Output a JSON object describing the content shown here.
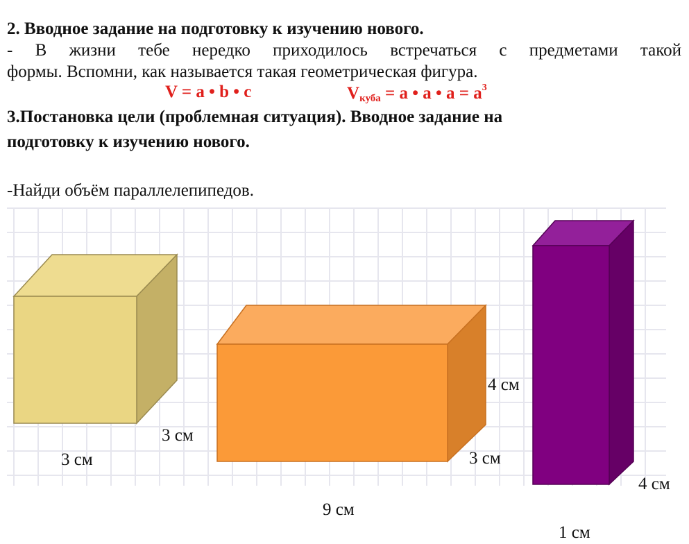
{
  "section2": {
    "heading": "2. Вводное задание на подготовку к изучению нового.",
    "line1": "- В жизни тебе нередко приходилось встречаться с предметами такой",
    "line2": "формы. Вспомни, как называется такая геометрическая фигура."
  },
  "formulas": {
    "box": "V = a • b • c",
    "cube_v": "V",
    "cube_sub": "куба",
    "cube_rest": " = a • a • a = a",
    "cube_sup": "3"
  },
  "section3": {
    "heading_line1": "3.Постановка цели (проблемная ситуация). Вводное задание на",
    "heading_line2": "подготовку к изучению нового.",
    "task": "-Найди объём параллелепипедов."
  },
  "figures": {
    "cube": {
      "color_front": "#ead683",
      "color_top": "#eedc90",
      "color_side": "#c4b066",
      "labels": [
        "3 см",
        "3 см"
      ]
    },
    "orange_box": {
      "color_front": "#fb9a38",
      "color_top": "#fbab5e",
      "color_side": "#d8802a",
      "labels": [
        "4 см",
        "3 см",
        "9 см"
      ]
    },
    "purple_box": {
      "color_front": "#800080",
      "color_top": "#93209a",
      "color_side": "#660066",
      "labels": [
        "4 см",
        "1 см"
      ]
    }
  }
}
